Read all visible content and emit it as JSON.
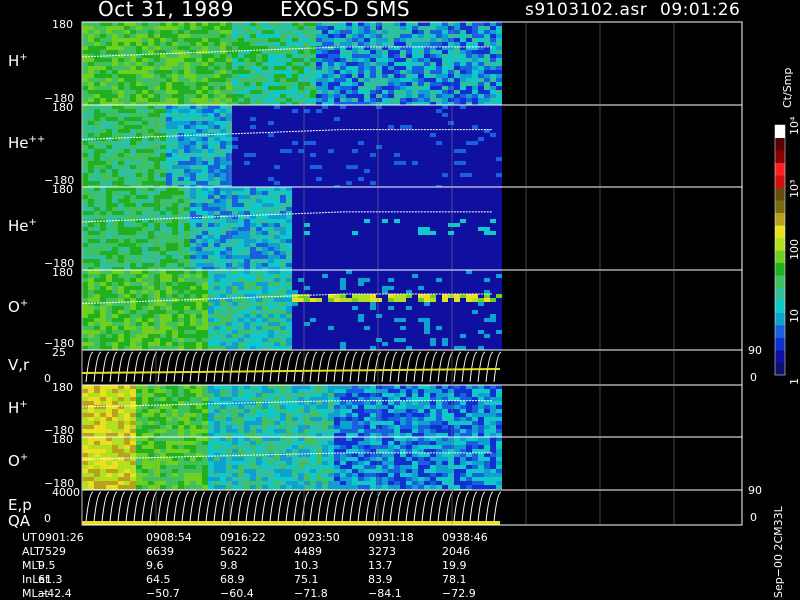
{
  "header": {
    "date": "Oct 31, 1989",
    "instrument": "EXOS-D SMS",
    "file": "s9103102.asr",
    "time": "09:01:26"
  },
  "colorbar": {
    "unit_label": "Ct/Smp",
    "ticks": [
      {
        "label": "1",
        "value": 1
      },
      {
        "label": "10",
        "value": 10
      },
      {
        "label": "100",
        "value": 100
      },
      {
        "label": "10³",
        "value": 1000
      },
      {
        "label": "10⁴",
        "value": 10000
      }
    ],
    "colors": [
      "#10106a",
      "#1010a0",
      "#1030d0",
      "#1860e0",
      "#10a0d0",
      "#10c8c8",
      "#30c0a0",
      "#40c060",
      "#20b020",
      "#70d020",
      "#b0e020",
      "#e8e020",
      "#b8a020",
      "#7a6a10",
      "#6a4a10",
      "#d01010",
      "#ff2020",
      "#8a0000",
      "#5a0000",
      "#ffffff"
    ]
  },
  "panels": [
    {
      "id": "h-plus",
      "label": "H",
      "sup": "+",
      "ymax": "180",
      "ymin": "−180",
      "kind": "spec"
    },
    {
      "id": "he-plusplus",
      "label": "He",
      "sup": "++",
      "ymax": "180",
      "ymin": "−180",
      "kind": "spec"
    },
    {
      "id": "he-plus",
      "label": "He",
      "sup": "+",
      "ymax": "180",
      "ymin": "−180",
      "kind": "spec"
    },
    {
      "id": "o-plus",
      "label": "O",
      "sup": "+",
      "ymax": "180",
      "ymin": "−180",
      "kind": "spec"
    },
    {
      "id": "vr",
      "label": "V,r",
      "sup": "",
      "ymax": "25",
      "ymin": "0",
      "rmax": "90",
      "rmin": "0",
      "kind": "line"
    },
    {
      "id": "h-plus-2",
      "label": "H",
      "sup": "+",
      "ymax": "180",
      "ymin": "−180",
      "kind": "spec"
    },
    {
      "id": "o-plus-2",
      "label": "O",
      "sup": "+",
      "ymax": "180",
      "ymin": "−180",
      "kind": "spec"
    },
    {
      "id": "ep",
      "label": "E,p",
      "label2": "QA",
      "sup": "",
      "ymax": "4000",
      "ymin": "0",
      "rmax": "90",
      "rmin": "0",
      "kind": "line"
    }
  ],
  "ephemeris": {
    "rows": [
      {
        "name": "UT",
        "values": [
          "0901:26",
          "0908:54",
          "0916:22",
          "0923:50",
          "0931:18",
          "0938:46"
        ]
      },
      {
        "name": "ALT",
        "values": [
          "7529",
          "6639",
          "5622",
          "4489",
          "3273",
          "2046"
        ]
      },
      {
        "name": "MLT",
        "values": [
          "9.5",
          "9.6",
          "9.8",
          "10.3",
          "13.7",
          "19.9"
        ]
      },
      {
        "name": "InLat",
        "values": [
          "61.3",
          "64.5",
          "68.9",
          "75.1",
          "83.9",
          "78.1"
        ]
      },
      {
        "name": "MLat",
        "values": [
          "−42.4",
          "−50.7",
          "−60.4",
          "−71.8",
          "−84.1",
          "−72.9"
        ]
      }
    ]
  },
  "footer_note": "Sep−00 2CM33L",
  "chart_data": {
    "type": "heatmap",
    "title": "Oct 31, 1989   EXOS-D SMS",
    "xlabel": "UT",
    "x_ticks": [
      "0901:26",
      "0908:54",
      "0916:22",
      "0923:50",
      "0931:18",
      "0938:46"
    ],
    "colorbar_unit": "Ct/Smp",
    "colorbar_range": [
      1,
      10000
    ],
    "colorbar_scale": "log",
    "series": [
      {
        "name": "H+",
        "ylim": [
          -180,
          180
        ]
      },
      {
        "name": "He++",
        "ylim": [
          -180,
          180
        ]
      },
      {
        "name": "He+",
        "ylim": [
          -180,
          180
        ]
      },
      {
        "name": "O+",
        "ylim": [
          -180,
          180
        ]
      },
      {
        "name": "V,r",
        "ylim": [
          0,
          25
        ]
      },
      {
        "name": "H+",
        "ylim": [
          -180,
          180
        ]
      },
      {
        "name": "O+",
        "ylim": [
          -180,
          180
        ]
      },
      {
        "name": "E,p",
        "ylim": [
          0,
          4000
        ]
      }
    ]
  }
}
